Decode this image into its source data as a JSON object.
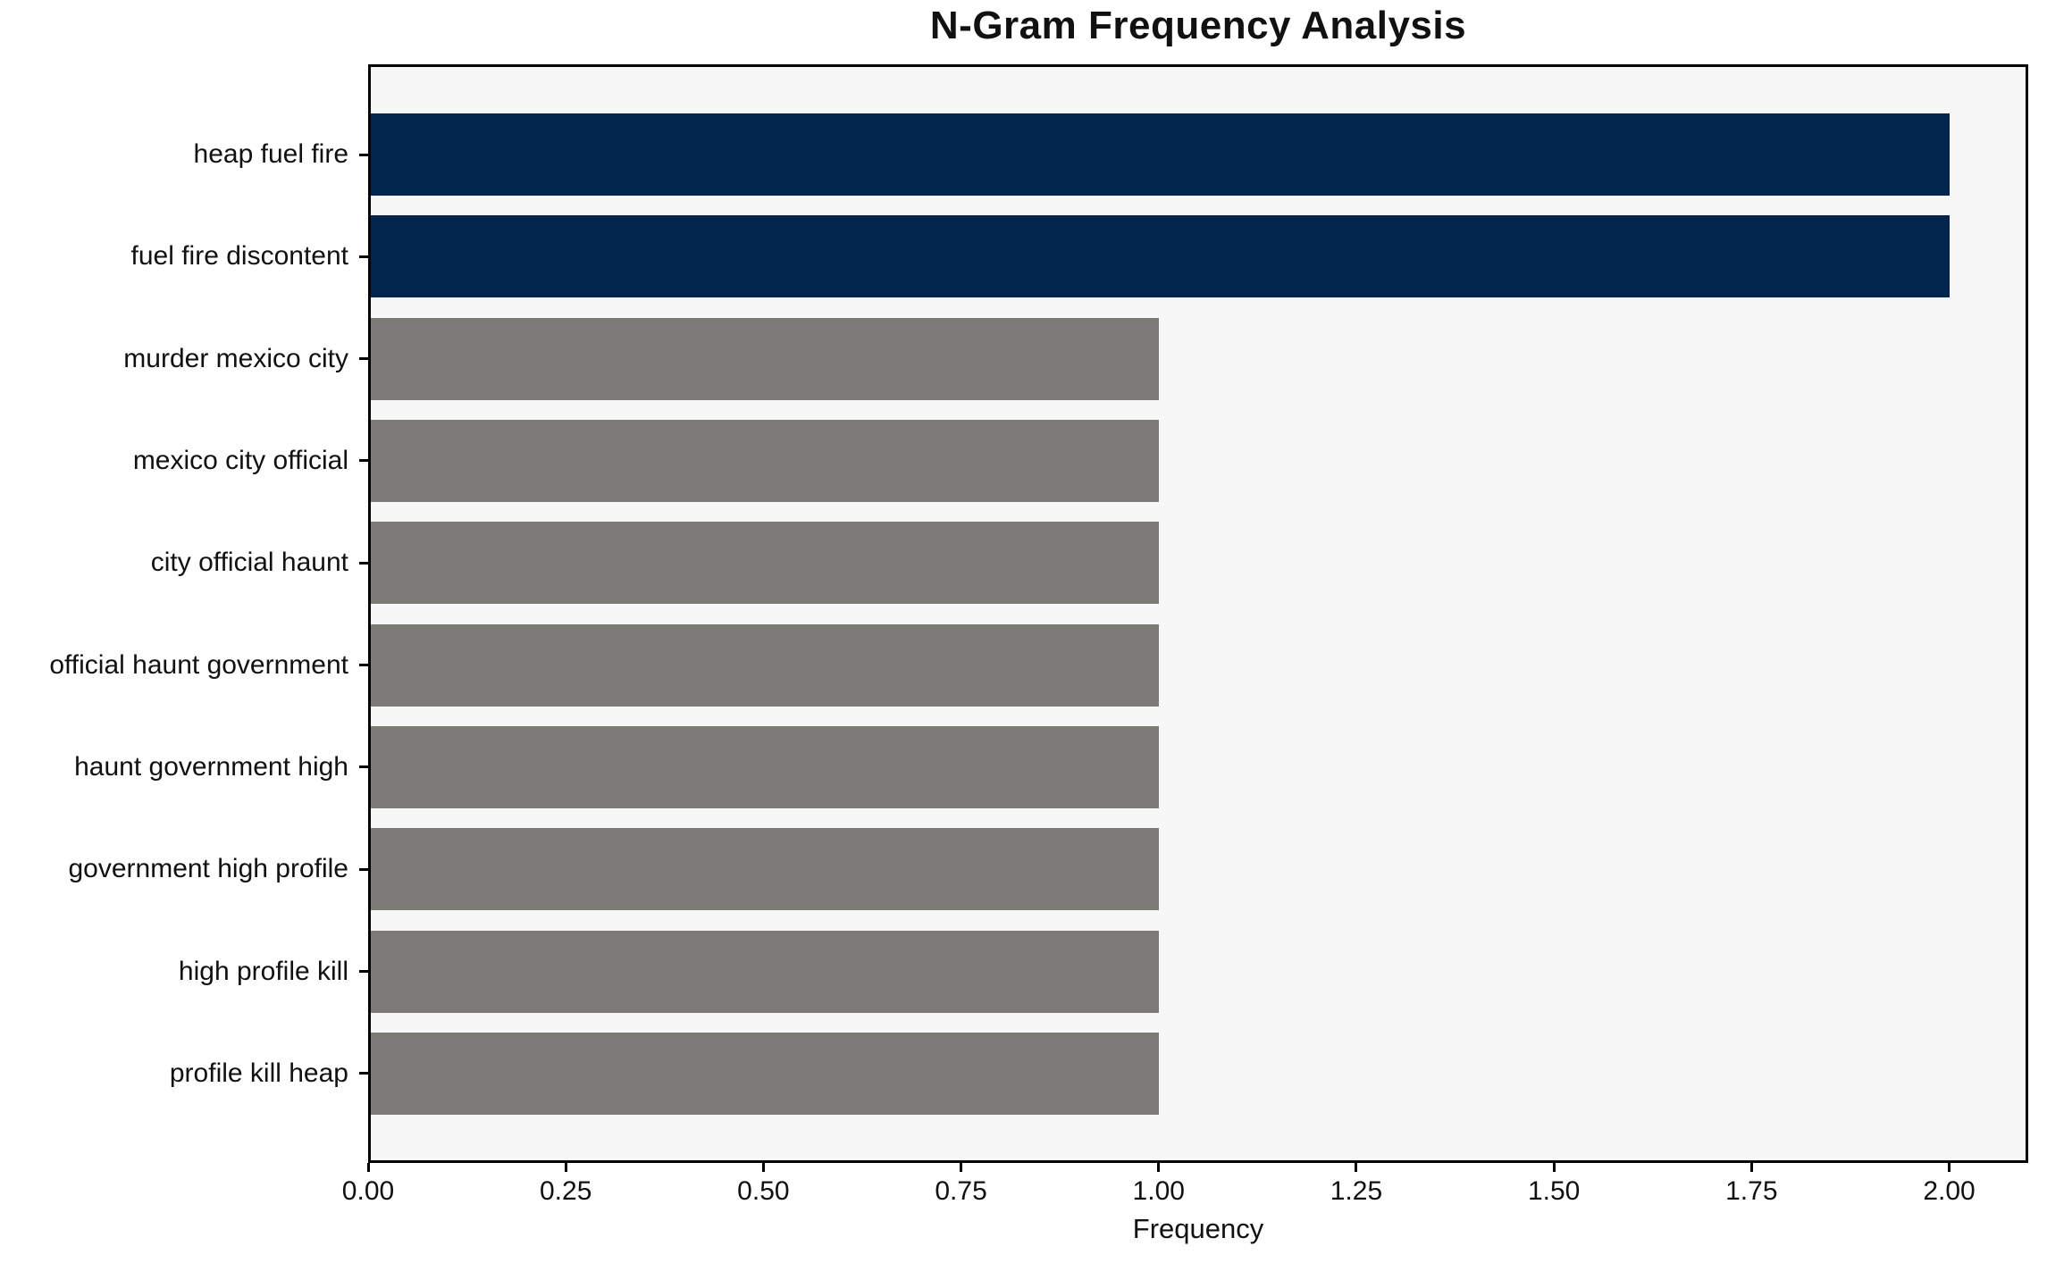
{
  "title": "N-Gram Frequency Analysis",
  "chart_data": {
    "type": "bar",
    "orientation": "horizontal",
    "title": "N-Gram Frequency Analysis",
    "xlabel": "Frequency",
    "ylabel": "",
    "categories": [
      "heap fuel fire",
      "fuel fire discontent",
      "murder mexico city",
      "mexico city official",
      "city official haunt",
      "official haunt government",
      "haunt government high",
      "government high profile",
      "high profile kill",
      "profile kill heap"
    ],
    "values": [
      2,
      2,
      1,
      1,
      1,
      1,
      1,
      1,
      1,
      1
    ],
    "bar_colors": [
      "#02254d",
      "#02254d",
      "#7b7a77",
      "#7b7a77",
      "#7b7a77",
      "#7b7a77",
      "#7b7a77",
      "#7b7a77",
      "#7b7a77",
      "#7b7a77"
    ],
    "x_tick_labels": [
      "0.00",
      "0.25",
      "0.50",
      "0.75",
      "1.00",
      "1.25",
      "1.50",
      "1.75",
      "2.00"
    ],
    "x_tick_values": [
      0,
      0.25,
      0.5,
      0.75,
      1.0,
      1.25,
      1.5,
      1.75,
      2.0
    ],
    "xlim": [
      0,
      2.1
    ],
    "grid": false,
    "legend": null,
    "colors": {
      "highlight": "#02254d",
      "default_bar": "#7b7a77",
      "plot_background": "#f8f7f7",
      "figure_background": "#ffffff",
      "spine": "#000000",
      "text": "#111111"
    }
  }
}
